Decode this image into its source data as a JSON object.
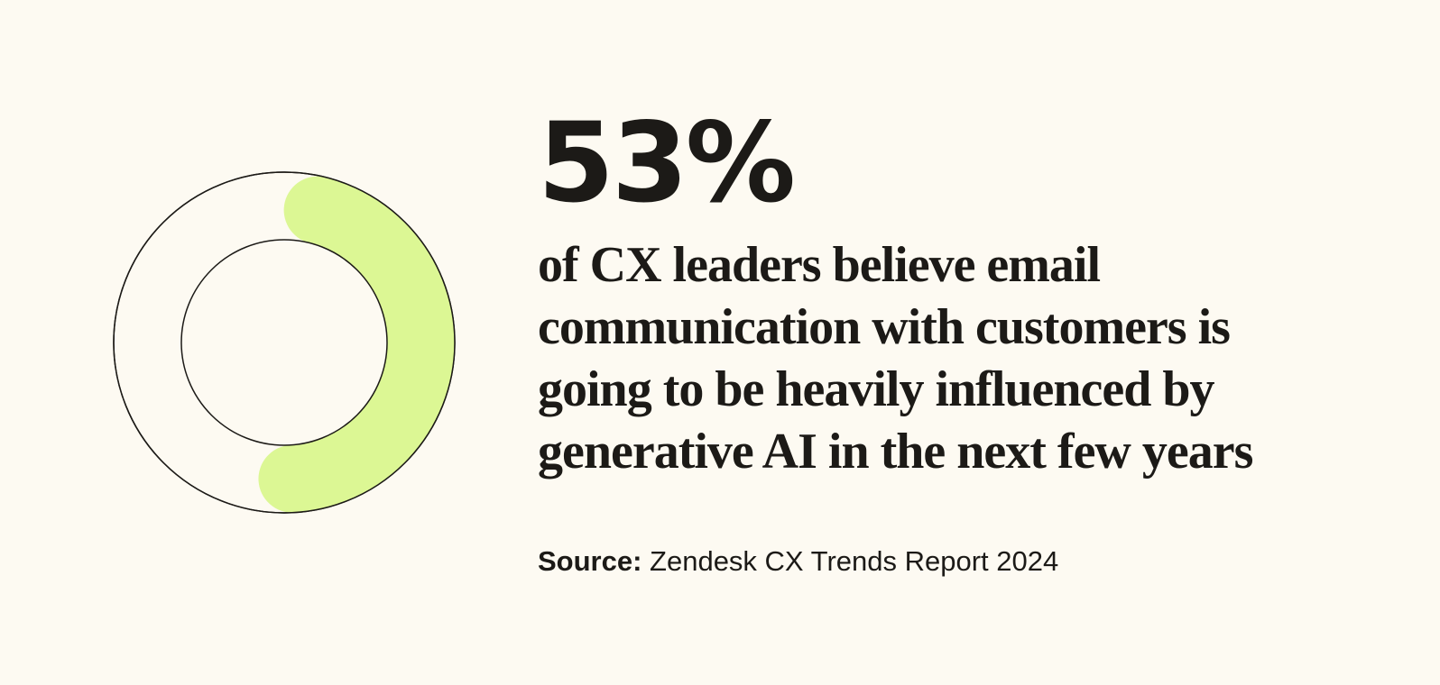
{
  "chart_data": {
    "type": "pie",
    "style": "donut",
    "value_percent": 53,
    "remainder_percent": 47,
    "title": "53%",
    "description": "of CX leaders believe email communication with customers is going to be heavily influenced by generative AI in the next few years"
  },
  "stat": {
    "value_label": "53%",
    "description": "of CX leaders believe email communication with customers is going to be heavily influenced by generative AI in the next few years"
  },
  "source": {
    "label": "Source:",
    "text": " Zendesk CX Trends Report 2024"
  },
  "colors": {
    "background": "#fdfaf2",
    "accent": "#dcf794",
    "outline": "#1c1a17",
    "text": "#1c1a17"
  }
}
